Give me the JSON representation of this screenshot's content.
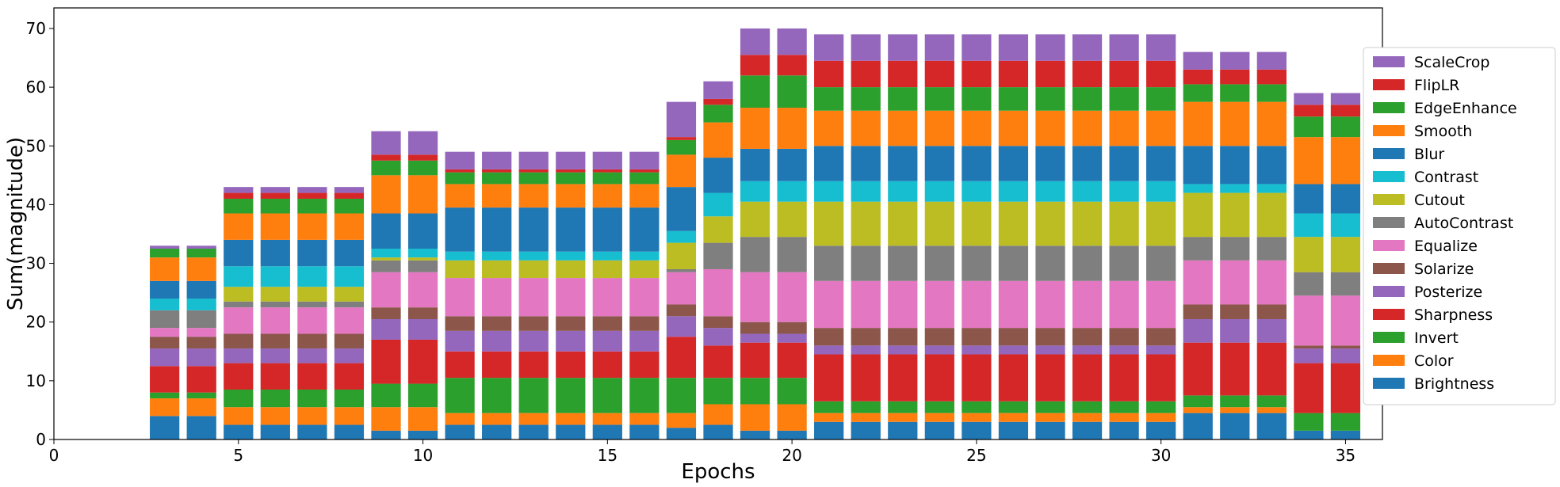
{
  "chart_data": {
    "type": "bar",
    "stacked": true,
    "xlabel": "Epochs",
    "ylabel": "Sum(magnitude)",
    "xlim": [
      0,
      36
    ],
    "ylim": [
      0,
      73.5
    ],
    "xticks": [
      0,
      5,
      10,
      15,
      20,
      25,
      30,
      35
    ],
    "yticks": [
      0,
      10,
      20,
      30,
      40,
      50,
      60,
      70
    ],
    "grid": false,
    "legend_position": "right",
    "legend_order": [
      "ScaleCrop",
      "FlipLR",
      "EdgeEnhance",
      "Smooth",
      "Blur",
      "Contrast",
      "Cutout",
      "AutoContrast",
      "Equalize",
      "Solarize",
      "Posterize",
      "Sharpness",
      "Invert",
      "Color",
      "Brightness"
    ],
    "x": [
      3,
      4,
      5,
      6,
      7,
      8,
      9,
      10,
      11,
      12,
      13,
      14,
      15,
      16,
      17,
      18,
      19,
      20,
      21,
      22,
      23,
      24,
      25,
      26,
      27,
      28,
      29,
      30,
      31,
      32,
      33,
      34,
      35
    ],
    "series": [
      {
        "name": "Brightness",
        "color": "#1f77b4",
        "values": [
          4,
          4,
          2.5,
          2.5,
          2.5,
          2.5,
          1.5,
          1.5,
          2.5,
          2.5,
          2.5,
          2.5,
          2.5,
          2.5,
          2,
          2.5,
          1.5,
          1.5,
          3,
          3,
          3,
          3,
          3,
          3,
          3,
          3,
          3,
          3,
          4.5,
          4.5,
          4.5,
          1.5,
          1.5
        ]
      },
      {
        "name": "Color",
        "color": "#ff7f0e",
        "values": [
          3,
          3,
          3,
          3,
          3,
          3,
          4,
          4,
          2,
          2,
          2,
          2,
          2,
          2,
          2.5,
          3.5,
          4.5,
          4.5,
          1.5,
          1.5,
          1.5,
          1.5,
          1.5,
          1.5,
          1.5,
          1.5,
          1.5,
          1.5,
          1,
          1,
          1,
          0,
          0
        ]
      },
      {
        "name": "Invert",
        "color": "#2ca02c",
        "values": [
          1,
          1,
          3,
          3,
          3,
          3,
          4,
          4,
          6,
          6,
          6,
          6,
          6,
          6,
          6,
          4.5,
          4.5,
          4.5,
          2,
          2,
          2,
          2,
          2,
          2,
          2,
          2,
          2,
          2,
          2,
          2,
          2,
          3,
          3
        ]
      },
      {
        "name": "Sharpness",
        "color": "#d62728",
        "values": [
          4.5,
          4.5,
          4.5,
          4.5,
          4.5,
          4.5,
          7.5,
          7.5,
          4.5,
          4.5,
          4.5,
          4.5,
          4.5,
          4.5,
          7,
          5.5,
          6,
          6,
          8,
          8,
          8,
          8,
          8,
          8,
          8,
          8,
          8,
          8,
          9,
          9,
          9,
          8.5,
          8.5
        ]
      },
      {
        "name": "Posterize",
        "color": "#9467bd",
        "values": [
          3,
          3,
          2.5,
          2.5,
          2.5,
          2.5,
          3.5,
          3.5,
          3.5,
          3.5,
          3.5,
          3.5,
          3.5,
          3.5,
          3.5,
          3,
          1.5,
          1.5,
          1.5,
          1.5,
          1.5,
          1.5,
          1.5,
          1.5,
          1.5,
          1.5,
          1.5,
          1.5,
          4,
          4,
          4,
          2.5,
          2.5
        ]
      },
      {
        "name": "Solarize",
        "color": "#8c564b",
        "values": [
          2,
          2,
          2.5,
          2.5,
          2.5,
          2.5,
          2,
          2,
          2.5,
          2.5,
          2.5,
          2.5,
          2.5,
          2.5,
          2,
          2,
          2,
          2,
          3,
          3,
          3,
          3,
          3,
          3,
          3,
          3,
          3,
          3,
          2.5,
          2.5,
          2.5,
          0.5,
          0.5
        ]
      },
      {
        "name": "Equalize",
        "color": "#e377c2",
        "values": [
          1.5,
          1.5,
          4.5,
          4.5,
          4.5,
          4.5,
          6,
          6,
          6.5,
          6.5,
          6.5,
          6.5,
          6.5,
          6.5,
          5.5,
          8,
          8.5,
          8.5,
          8,
          8,
          8,
          8,
          8,
          8,
          8,
          8,
          8,
          8,
          7.5,
          7.5,
          7.5,
          8.5,
          8.5
        ]
      },
      {
        "name": "AutoContrast",
        "color": "#7f7f7f",
        "values": [
          3,
          3,
          1,
          1,
          1,
          1,
          2,
          2,
          0,
          0,
          0,
          0,
          0,
          0,
          0.5,
          4.5,
          6,
          6,
          6,
          6,
          6,
          6,
          6,
          6,
          6,
          6,
          6,
          6,
          4,
          4,
          4,
          4,
          4
        ]
      },
      {
        "name": "Cutout",
        "color": "#bcbd22",
        "values": [
          0,
          0,
          2.5,
          2.5,
          2.5,
          2.5,
          0.5,
          0.5,
          3,
          3,
          3,
          3,
          3,
          3,
          4.5,
          4.5,
          6,
          6,
          7.5,
          7.5,
          7.5,
          7.5,
          7.5,
          7.5,
          7.5,
          7.5,
          7.5,
          7.5,
          7.5,
          7.5,
          7.5,
          6,
          6
        ]
      },
      {
        "name": "Contrast",
        "color": "#17becf",
        "values": [
          2,
          2,
          3.5,
          3.5,
          3.5,
          3.5,
          1.5,
          1.5,
          1.5,
          1.5,
          1.5,
          1.5,
          1.5,
          1.5,
          2,
          4,
          3.5,
          3.5,
          3.5,
          3.5,
          3.5,
          3.5,
          3.5,
          3.5,
          3.5,
          3.5,
          3.5,
          3.5,
          1.5,
          1.5,
          1.5,
          4,
          4
        ]
      },
      {
        "name": "Blur",
        "color": "#1f77b4",
        "values": [
          3,
          3,
          4.5,
          4.5,
          4.5,
          4.5,
          6,
          6,
          7.5,
          7.5,
          7.5,
          7.5,
          7.5,
          7.5,
          7.5,
          6,
          5.5,
          5.5,
          6,
          6,
          6,
          6,
          6,
          6,
          6,
          6,
          6,
          6,
          6.5,
          6.5,
          6.5,
          5,
          5
        ]
      },
      {
        "name": "Smooth",
        "color": "#ff7f0e",
        "values": [
          4,
          4,
          4.5,
          4.5,
          4.5,
          4.5,
          6.5,
          6.5,
          4,
          4,
          4,
          4,
          4,
          4,
          5.5,
          6,
          7,
          7,
          6,
          6,
          6,
          6,
          6,
          6,
          6,
          6,
          6,
          6,
          7.5,
          7.5,
          7.5,
          8,
          8
        ]
      },
      {
        "name": "EdgeEnhance",
        "color": "#2ca02c",
        "values": [
          1.5,
          1.5,
          2.5,
          2.5,
          2.5,
          2.5,
          2.5,
          2.5,
          2,
          2,
          2,
          2,
          2,
          2,
          2.5,
          3,
          5.5,
          5.5,
          4,
          4,
          4,
          4,
          4,
          4,
          4,
          4,
          4,
          4,
          3,
          3,
          3,
          3.5,
          3.5
        ]
      },
      {
        "name": "FlipLR",
        "color": "#d62728",
        "values": [
          0,
          0,
          1,
          1,
          1,
          1,
          1,
          1,
          0.5,
          0.5,
          0.5,
          0.5,
          0.5,
          0.5,
          0.5,
          1,
          3.5,
          3.5,
          4.5,
          4.5,
          4.5,
          4.5,
          4.5,
          4.5,
          4.5,
          4.5,
          4.5,
          4.5,
          2.5,
          2.5,
          2.5,
          2,
          2
        ]
      },
      {
        "name": "ScaleCrop",
        "color": "#9467bd",
        "values": [
          0.5,
          0.5,
          1,
          1,
          1,
          1,
          4,
          4,
          3,
          3,
          3,
          3,
          3,
          3,
          6,
          3,
          4.5,
          4.5,
          4.5,
          4.5,
          4.5,
          4.5,
          4.5,
          4.5,
          4.5,
          4.5,
          4.5,
          4.5,
          3,
          3,
          3,
          2,
          2
        ]
      }
    ]
  }
}
